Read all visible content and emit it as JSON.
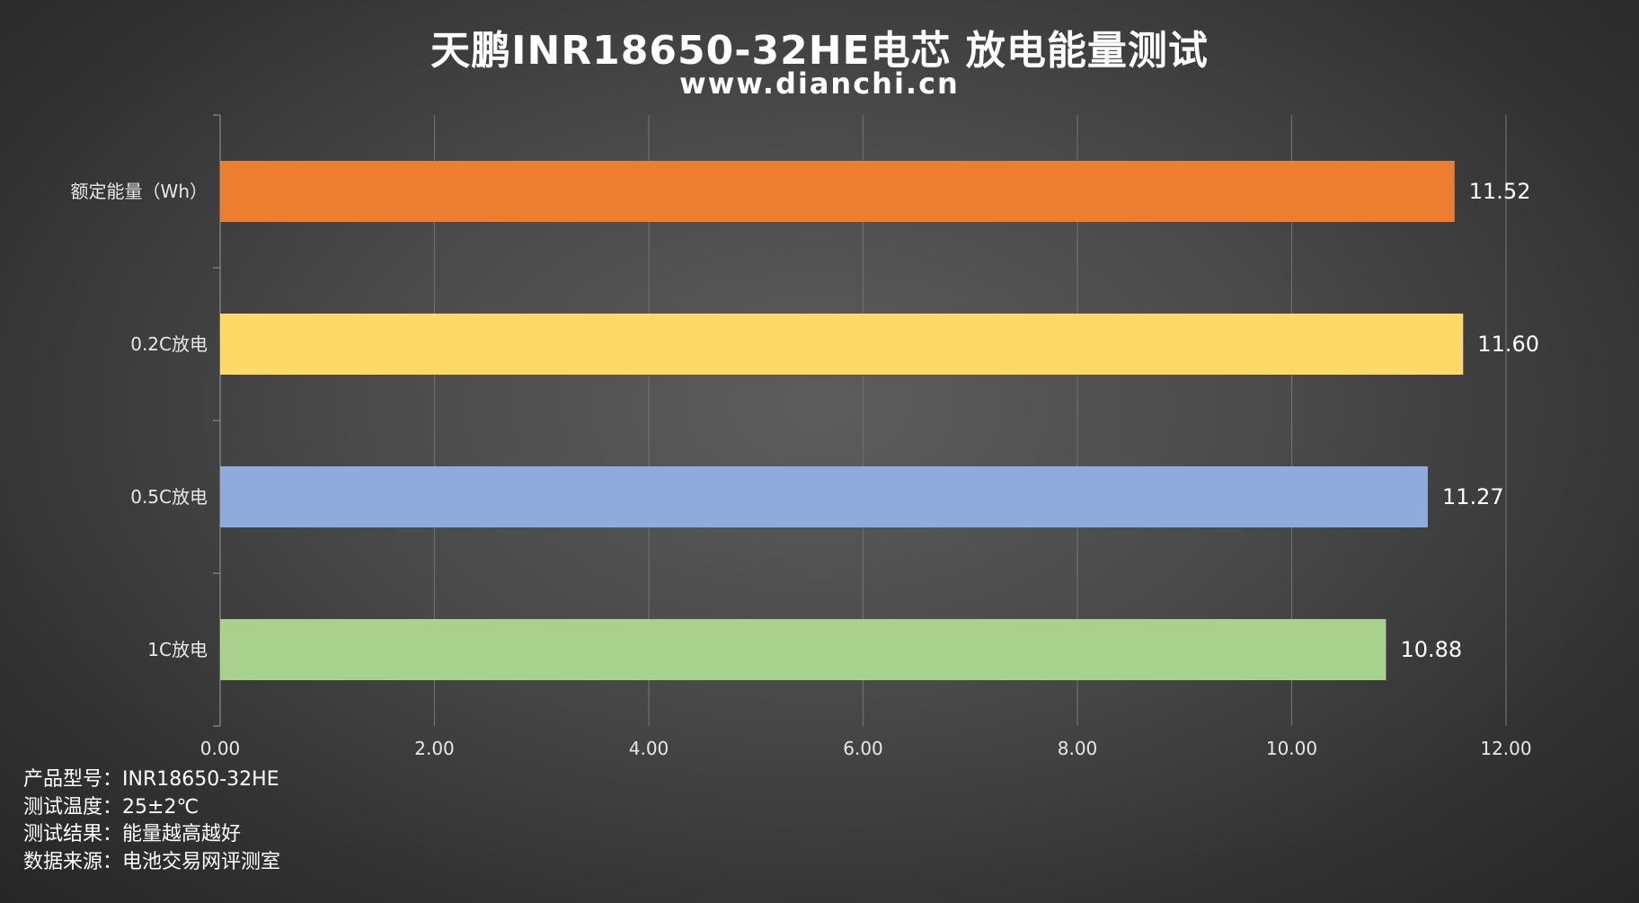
{
  "chart_data": {
    "type": "bar",
    "orientation": "horizontal",
    "title": "天鹏INR18650-32HE电芯 放电能量测试",
    "subtitle": "www.dianchi.cn",
    "categories": [
      "额定能量（Wh）",
      "0.2C放电",
      "0.5C放电",
      "1C放电"
    ],
    "values": [
      11.52,
      11.6,
      11.27,
      10.88
    ],
    "value_labels": [
      "11.52",
      "11.60",
      "11.27",
      "10.88"
    ],
    "colors": [
      "#ed7d31",
      "#ffd966",
      "#8faadc",
      "#a9d18e"
    ],
    "xlim": [
      0,
      12
    ],
    "xticks": [
      0,
      2,
      4,
      6,
      8,
      10,
      12
    ],
    "xtick_labels": [
      "0.00",
      "2.00",
      "4.00",
      "6.00",
      "8.00",
      "10.00",
      "12.00"
    ],
    "xlabel": "",
    "ylabel": "",
    "grid": "vertical",
    "legend": "none"
  },
  "notes": [
    {
      "label": "产品型号：",
      "value": "INR18650-32HE"
    },
    {
      "label": "测试温度：",
      "value": "25±2℃"
    },
    {
      "label": "测试结果：",
      "value": "能量越高越好"
    },
    {
      "label": "数据来源：",
      "value": "电池交易网评测室"
    }
  ]
}
